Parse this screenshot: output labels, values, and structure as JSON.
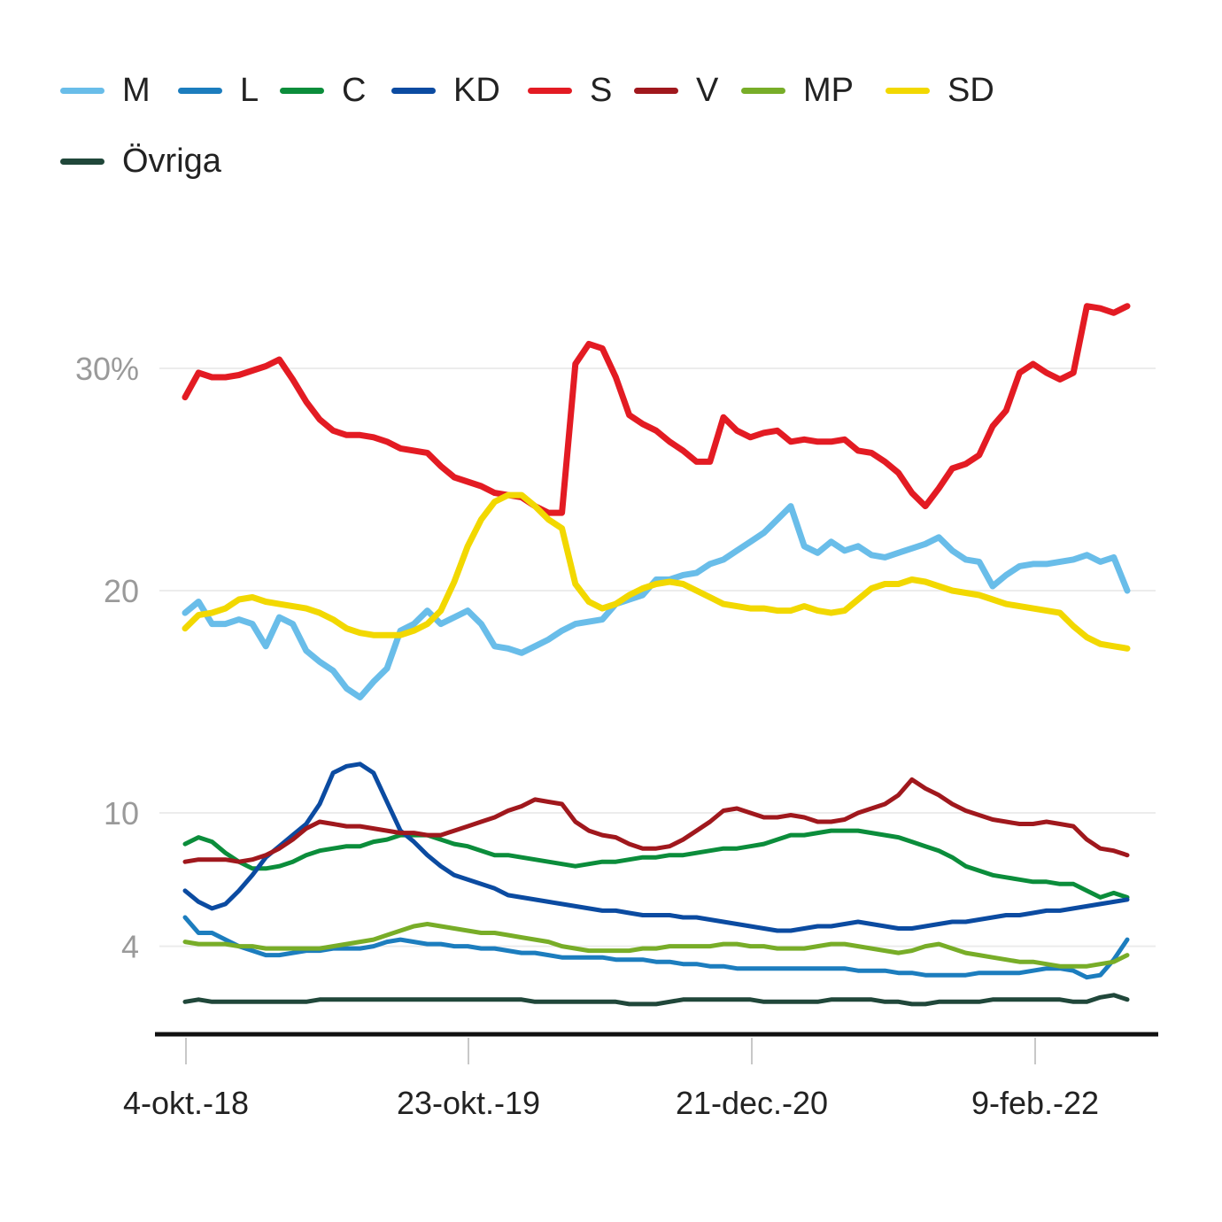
{
  "chart_data": {
    "type": "line",
    "title": "",
    "xlabel": "",
    "ylabel": "",
    "x_ticks": [
      "4-okt.-18",
      "23-okt.-19",
      "21-dec.-20",
      "9-feb.-22"
    ],
    "y_ticks": [
      {
        "value": 30,
        "label": "30%"
      },
      {
        "value": 20,
        "label": "20"
      },
      {
        "value": 10,
        "label": "10"
      },
      {
        "value": 4,
        "label": "4"
      }
    ],
    "ylim": [
      0.4,
      34
    ],
    "grid": true,
    "legend_placement": "top",
    "series": [
      {
        "name": "M",
        "color": "#69bde9",
        "values": [
          19,
          19.5,
          18.5,
          18.5,
          18.7,
          18.5,
          17.5,
          18.8,
          18.5,
          17.3,
          16.8,
          16.4,
          15.6,
          15.2,
          15.9,
          16.5,
          18.2,
          18.5,
          19.1,
          18.5,
          18.8,
          19.1,
          18.5,
          17.5,
          17.4,
          17.2,
          17.5,
          17.8,
          18.2,
          18.5,
          18.6,
          18.7,
          19.4,
          19.6,
          19.8,
          20.5,
          20.5,
          20.7,
          20.8,
          21.2,
          21.4,
          21.8,
          22.2,
          22.6,
          23.2,
          23.8,
          22,
          21.7,
          22.2,
          21.8,
          22,
          21.6,
          21.5,
          21.7,
          21.9,
          22.1,
          22.4,
          21.8,
          21.4,
          21.3,
          20.2,
          20.7,
          21.1,
          21.2,
          21.2,
          21.3,
          21.4,
          21.6,
          21.3,
          21.5,
          20
        ]
      },
      {
        "name": "L",
        "color": "#1c7dbe",
        "values": [
          5.3,
          4.6,
          4.6,
          4.3,
          4,
          3.8,
          3.6,
          3.6,
          3.7,
          3.8,
          3.8,
          3.9,
          3.9,
          3.9,
          4,
          4.2,
          4.3,
          4.2,
          4.1,
          4.1,
          4,
          4,
          3.9,
          3.9,
          3.8,
          3.7,
          3.7,
          3.6,
          3.5,
          3.5,
          3.5,
          3.5,
          3.4,
          3.4,
          3.4,
          3.3,
          3.3,
          3.2,
          3.2,
          3.1,
          3.1,
          3,
          3,
          3,
          3,
          3,
          3,
          3,
          3,
          3,
          2.9,
          2.9,
          2.9,
          2.8,
          2.8,
          2.7,
          2.7,
          2.7,
          2.7,
          2.8,
          2.8,
          2.8,
          2.8,
          2.9,
          3,
          3,
          2.9,
          2.6,
          2.7,
          3.4,
          4.3
        ]
      },
      {
        "name": "C",
        "color": "#0b8d3b",
        "values": [
          8.6,
          8.9,
          8.7,
          8.2,
          7.8,
          7.5,
          7.5,
          7.6,
          7.8,
          8.1,
          8.3,
          8.4,
          8.5,
          8.5,
          8.7,
          8.8,
          9,
          9,
          9,
          8.8,
          8.6,
          8.5,
          8.3,
          8.1,
          8.1,
          8,
          7.9,
          7.8,
          7.7,
          7.6,
          7.7,
          7.8,
          7.8,
          7.9,
          8,
          8,
          8.1,
          8.1,
          8.2,
          8.3,
          8.4,
          8.4,
          8.5,
          8.6,
          8.8,
          9,
          9,
          9.1,
          9.2,
          9.2,
          9.2,
          9.1,
          9,
          8.9,
          8.7,
          8.5,
          8.3,
          8,
          7.6,
          7.4,
          7.2,
          7.1,
          7,
          6.9,
          6.9,
          6.8,
          6.8,
          6.5,
          6.2,
          6.4,
          6.2
        ]
      },
      {
        "name": "KD",
        "color": "#0b4ba1",
        "values": [
          6.5,
          6,
          5.7,
          5.9,
          6.5,
          7.2,
          8,
          8.5,
          9,
          9.5,
          10.4,
          11.8,
          12.1,
          12.2,
          11.8,
          10.5,
          9.2,
          8.7,
          8.1,
          7.6,
          7.2,
          7,
          6.8,
          6.6,
          6.3,
          6.2,
          6.1,
          6,
          5.9,
          5.8,
          5.7,
          5.6,
          5.6,
          5.5,
          5.4,
          5.4,
          5.4,
          5.3,
          5.3,
          5.2,
          5.1,
          5,
          4.9,
          4.8,
          4.7,
          4.7,
          4.8,
          4.9,
          4.9,
          5,
          5.1,
          5,
          4.9,
          4.8,
          4.8,
          4.9,
          5,
          5.1,
          5.1,
          5.2,
          5.3,
          5.4,
          5.4,
          5.5,
          5.6,
          5.6,
          5.7,
          5.8,
          5.9,
          6,
          6.1
        ]
      },
      {
        "name": "S",
        "color": "#e31b23",
        "values": [
          28.7,
          29.8,
          29.6,
          29.6,
          29.7,
          29.9,
          30.1,
          30.4,
          29.5,
          28.5,
          27.7,
          27.2,
          27,
          27,
          26.9,
          26.7,
          26.4,
          26.3,
          26.2,
          25.6,
          25.1,
          24.9,
          24.7,
          24.4,
          24.3,
          24.2,
          23.8,
          23.5,
          23.5,
          30.2,
          31.1,
          30.9,
          29.6,
          27.9,
          27.5,
          27.2,
          26.7,
          26.3,
          25.8,
          25.8,
          27.8,
          27.2,
          26.9,
          27.1,
          27.2,
          26.7,
          26.8,
          26.7,
          26.7,
          26.8,
          26.3,
          26.2,
          25.8,
          25.3,
          24.4,
          23.8,
          24.6,
          25.5,
          25.7,
          26.1,
          27.4,
          28.1,
          29.8,
          30.2,
          29.8,
          29.5,
          29.8,
          32.8,
          32.7,
          32.5,
          32.8
        ]
      },
      {
        "name": "V",
        "color": "#a0181d",
        "values": [
          7.8,
          7.9,
          7.9,
          7.9,
          7.8,
          7.9,
          8.1,
          8.4,
          8.8,
          9.3,
          9.6,
          9.5,
          9.4,
          9.4,
          9.3,
          9.2,
          9.1,
          9.1,
          9,
          9,
          9.2,
          9.4,
          9.6,
          9.8,
          10.1,
          10.3,
          10.6,
          10.5,
          10.4,
          9.6,
          9.2,
          9,
          8.9,
          8.6,
          8.4,
          8.4,
          8.5,
          8.8,
          9.2,
          9.6,
          10.1,
          10.2,
          10,
          9.8,
          9.8,
          9.9,
          9.8,
          9.6,
          9.6,
          9.7,
          10,
          10.2,
          10.4,
          10.8,
          11.5,
          11.1,
          10.8,
          10.4,
          10.1,
          9.9,
          9.7,
          9.6,
          9.5,
          9.5,
          9.6,
          9.5,
          9.4,
          8.8,
          8.4,
          8.3,
          8.1
        ]
      },
      {
        "name": "MP",
        "color": "#78ad28",
        "values": [
          4.2,
          4.1,
          4.1,
          4.1,
          4,
          4,
          3.9,
          3.9,
          3.9,
          3.9,
          3.9,
          4,
          4.1,
          4.2,
          4.3,
          4.5,
          4.7,
          4.9,
          5,
          4.9,
          4.8,
          4.7,
          4.6,
          4.6,
          4.5,
          4.4,
          4.3,
          4.2,
          4,
          3.9,
          3.8,
          3.8,
          3.8,
          3.8,
          3.9,
          3.9,
          4,
          4,
          4,
          4,
          4.1,
          4.1,
          4,
          4,
          3.9,
          3.9,
          3.9,
          4,
          4.1,
          4.1,
          4,
          3.9,
          3.8,
          3.7,
          3.8,
          4,
          4.1,
          3.9,
          3.7,
          3.6,
          3.5,
          3.4,
          3.3,
          3.3,
          3.2,
          3.1,
          3.1,
          3.1,
          3.2,
          3.3,
          3.6
        ]
      },
      {
        "name": "SD",
        "color": "#f2d800",
        "values": [
          18.3,
          18.9,
          19,
          19.2,
          19.6,
          19.7,
          19.5,
          19.4,
          19.3,
          19.2,
          19,
          18.7,
          18.3,
          18.1,
          18,
          18,
          18,
          18.2,
          18.5,
          19.1,
          20.4,
          22,
          23.2,
          24,
          24.3,
          24.3,
          23.8,
          23.2,
          22.8,
          20.3,
          19.5,
          19.2,
          19.4,
          19.8,
          20.1,
          20.3,
          20.4,
          20.3,
          20,
          19.7,
          19.4,
          19.3,
          19.2,
          19.2,
          19.1,
          19.1,
          19.3,
          19.1,
          19,
          19.1,
          19.6,
          20.1,
          20.3,
          20.3,
          20.5,
          20.4,
          20.2,
          20,
          19.9,
          19.8,
          19.6,
          19.4,
          19.3,
          19.2,
          19.1,
          19,
          18.4,
          17.9,
          17.6,
          17.5,
          17.4
        ]
      },
      {
        "name": "Övriga",
        "color": "#20473a",
        "values": [
          1.5,
          1.6,
          1.5,
          1.5,
          1.5,
          1.5,
          1.5,
          1.5,
          1.5,
          1.5,
          1.6,
          1.6,
          1.6,
          1.6,
          1.6,
          1.6,
          1.6,
          1.6,
          1.6,
          1.6,
          1.6,
          1.6,
          1.6,
          1.6,
          1.6,
          1.6,
          1.5,
          1.5,
          1.5,
          1.5,
          1.5,
          1.5,
          1.5,
          1.4,
          1.4,
          1.4,
          1.5,
          1.6,
          1.6,
          1.6,
          1.6,
          1.6,
          1.6,
          1.5,
          1.5,
          1.5,
          1.5,
          1.5,
          1.6,
          1.6,
          1.6,
          1.6,
          1.5,
          1.5,
          1.4,
          1.4,
          1.5,
          1.5,
          1.5,
          1.5,
          1.6,
          1.6,
          1.6,
          1.6,
          1.6,
          1.6,
          1.5,
          1.5,
          1.7,
          1.8,
          1.6
        ]
      }
    ]
  }
}
